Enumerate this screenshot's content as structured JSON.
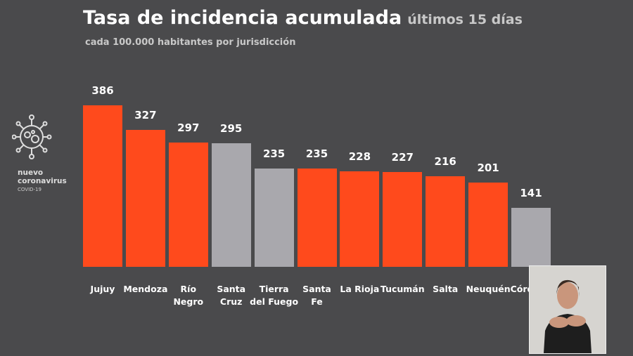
{
  "title": "Tasa de incidencia acumulada",
  "title_note": "últimos 15 días",
  "logo": {
    "line1": "nuevo",
    "line2": "coronavirus",
    "line3": "COVID-19"
  },
  "chart_data": {
    "type": "bar",
    "subtitle": "cada 100.000 habitantes por jurisdicción",
    "categories": [
      "Jujuy",
      "Mendoza",
      "Río\nNegro",
      "Santa\nCruz",
      "Tierra\ndel Fuego",
      "Santa\nFe",
      "La Rioja",
      "Tucumán",
      "Salta",
      "Neuquén",
      "Córdoba"
    ],
    "values": [
      386,
      327,
      297,
      295,
      235,
      235,
      228,
      227,
      216,
      201,
      141
    ],
    "colors": [
      "#ff4a1c",
      "#ff4a1c",
      "#ff4a1c",
      "#a9a8ad",
      "#a9a8ad",
      "#ff4a1c",
      "#ff4a1c",
      "#ff4a1c",
      "#ff4a1c",
      "#ff4a1c",
      "#a9a8ad"
    ]
  }
}
